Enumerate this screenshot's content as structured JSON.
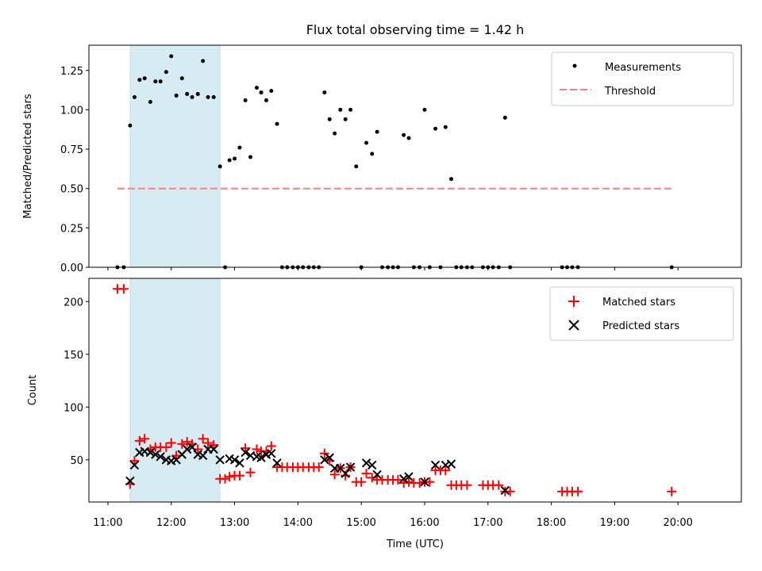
{
  "chart_data": [
    {
      "type": "scatter",
      "title": "Flux total observing time = 1.42 h",
      "xlabel": "",
      "ylabel": "Matched/Predicted stars",
      "xlim": [
        10.7,
        21.0
      ],
      "ylim": [
        0,
        1.41
      ],
      "yticks": [
        "0.00",
        "0.25",
        "0.50",
        "0.75",
        "1.00",
        "1.25"
      ],
      "xticks_hours": [
        11,
        12,
        13,
        14,
        15,
        16,
        17,
        18,
        19,
        20
      ],
      "shaded_interval": [
        11.35,
        12.77
      ],
      "grid": false,
      "legend_position": "top-right",
      "legend": [
        "Measurements",
        "Threshold"
      ],
      "threshold": {
        "name": "Threshold",
        "value": 0.5,
        "x_range": [
          11.15,
          19.9
        ],
        "color": "#ff7f7f",
        "style": "dashed"
      },
      "series": [
        {
          "name": "Measurements",
          "color": "#000000",
          "points": [
            [
              11.15,
              0
            ],
            [
              11.25,
              0
            ],
            [
              11.35,
              0.9
            ],
            [
              11.42,
              1.08
            ],
            [
              11.5,
              1.19
            ],
            [
              11.58,
              1.2
            ],
            [
              11.67,
              1.05
            ],
            [
              11.75,
              1.18
            ],
            [
              11.83,
              1.18
            ],
            [
              11.92,
              1.24
            ],
            [
              12.0,
              1.34
            ],
            [
              12.08,
              1.09
            ],
            [
              12.17,
              1.2
            ],
            [
              12.25,
              1.1
            ],
            [
              12.33,
              1.08
            ],
            [
              12.42,
              1.1
            ],
            [
              12.5,
              1.31
            ],
            [
              12.58,
              1.08
            ],
            [
              12.67,
              1.08
            ],
            [
              12.77,
              0.64
            ],
            [
              12.85,
              0
            ],
            [
              12.92,
              0.68
            ],
            [
              13.0,
              0.69
            ],
            [
              13.08,
              0.76
            ],
            [
              13.17,
              1.06
            ],
            [
              13.25,
              0.7
            ],
            [
              13.35,
              1.14
            ],
            [
              13.42,
              1.11
            ],
            [
              13.5,
              1.06
            ],
            [
              13.58,
              1.12
            ],
            [
              13.67,
              0.91
            ],
            [
              13.75,
              0
            ],
            [
              13.83,
              0
            ],
            [
              13.92,
              0
            ],
            [
              14.0,
              0
            ],
            [
              14.08,
              0
            ],
            [
              14.17,
              0
            ],
            [
              14.25,
              0
            ],
            [
              14.33,
              0
            ],
            [
              14.42,
              1.11
            ],
            [
              14.5,
              0.94
            ],
            [
              14.58,
              0.85
            ],
            [
              14.67,
              1.0
            ],
            [
              14.75,
              0.94
            ],
            [
              14.83,
              1.0
            ],
            [
              14.92,
              0.64
            ],
            [
              15.0,
              0
            ],
            [
              15.08,
              0.79
            ],
            [
              15.17,
              0.72
            ],
            [
              15.25,
              0.86
            ],
            [
              15.33,
              0
            ],
            [
              15.42,
              0
            ],
            [
              15.5,
              0
            ],
            [
              15.58,
              0
            ],
            [
              15.67,
              0.84
            ],
            [
              15.75,
              0.82
            ],
            [
              15.83,
              0
            ],
            [
              15.92,
              0
            ],
            [
              16.0,
              1.0
            ],
            [
              16.08,
              0
            ],
            [
              16.17,
              0.88
            ],
            [
              16.25,
              0
            ],
            [
              16.33,
              0.89
            ],
            [
              16.42,
              0.56
            ],
            [
              16.5,
              0
            ],
            [
              16.58,
              0
            ],
            [
              16.67,
              0
            ],
            [
              16.75,
              0
            ],
            [
              16.92,
              0
            ],
            [
              17.0,
              0
            ],
            [
              17.08,
              0
            ],
            [
              17.17,
              0
            ],
            [
              17.27,
              0.95
            ],
            [
              17.35,
              0
            ],
            [
              18.17,
              0
            ],
            [
              18.25,
              0
            ],
            [
              18.33,
              0
            ],
            [
              18.42,
              0
            ],
            [
              19.9,
              0
            ]
          ]
        }
      ]
    },
    {
      "type": "scatter",
      "title": "",
      "xlabel": "Time (UTC)",
      "ylabel": "Count",
      "xlim": [
        10.7,
        21.0
      ],
      "ylim": [
        10,
        222
      ],
      "yticks": [
        "50",
        "100",
        "150",
        "200"
      ],
      "yticks_values": [
        50,
        100,
        150,
        200
      ],
      "xtick_labels": [
        "11:00",
        "12:00",
        "13:00",
        "14:00",
        "15:00",
        "16:00",
        "17:00",
        "18:00",
        "19:00",
        "20:00"
      ],
      "xticks_hours": [
        11,
        12,
        13,
        14,
        15,
        16,
        17,
        18,
        19,
        20
      ],
      "shaded_interval": [
        11.35,
        12.77
      ],
      "grid": false,
      "legend_position": "top-right",
      "legend": [
        "Matched stars",
        "Predicted stars"
      ],
      "series": [
        {
          "name": "Matched stars",
          "marker": "plus",
          "color": "#ff0000",
          "points": [
            [
              11.15,
              212
            ],
            [
              11.25,
              212
            ],
            [
              11.35,
              27
            ],
            [
              11.42,
              49
            ],
            [
              11.5,
              68
            ],
            [
              11.58,
              70
            ],
            [
              11.67,
              60
            ],
            [
              11.75,
              62
            ],
            [
              11.83,
              62
            ],
            [
              11.92,
              62
            ],
            [
              12.0,
              66
            ],
            [
              12.08,
              54
            ],
            [
              12.17,
              65
            ],
            [
              12.25,
              67
            ],
            [
              12.33,
              65
            ],
            [
              12.42,
              60
            ],
            [
              12.5,
              70
            ],
            [
              12.58,
              66
            ],
            [
              12.67,
              64
            ],
            [
              12.77,
              32
            ],
            [
              12.85,
              32
            ],
            [
              12.92,
              34
            ],
            [
              13.0,
              35
            ],
            [
              13.08,
              35
            ],
            [
              13.17,
              61
            ],
            [
              13.25,
              38
            ],
            [
              13.35,
              60
            ],
            [
              13.42,
              58
            ],
            [
              13.5,
              58
            ],
            [
              13.58,
              63
            ],
            [
              13.67,
              43
            ],
            [
              13.75,
              43
            ],
            [
              13.83,
              43
            ],
            [
              13.92,
              43
            ],
            [
              14.0,
              43
            ],
            [
              14.08,
              43
            ],
            [
              14.17,
              43
            ],
            [
              14.25,
              43
            ],
            [
              14.33,
              43
            ],
            [
              14.42,
              56
            ],
            [
              14.5,
              49
            ],
            [
              14.58,
              36
            ],
            [
              14.67,
              42
            ],
            [
              14.75,
              35
            ],
            [
              14.83,
              43
            ],
            [
              14.92,
              29
            ],
            [
              15.0,
              29
            ],
            [
              15.08,
              37
            ],
            [
              15.17,
              33
            ],
            [
              15.25,
              31
            ],
            [
              15.33,
              31
            ],
            [
              15.42,
              31
            ],
            [
              15.5,
              31
            ],
            [
              15.58,
              31
            ],
            [
              15.67,
              28
            ],
            [
              15.75,
              29
            ],
            [
              15.83,
              28
            ],
            [
              15.92,
              28
            ],
            [
              16.0,
              29
            ],
            [
              16.08,
              29
            ],
            [
              16.17,
              40
            ],
            [
              16.25,
              40
            ],
            [
              16.33,
              40
            ],
            [
              16.42,
              26
            ],
            [
              16.5,
              26
            ],
            [
              16.58,
              26
            ],
            [
              16.67,
              26
            ],
            [
              16.92,
              26
            ],
            [
              17.0,
              26
            ],
            [
              17.08,
              26
            ],
            [
              17.17,
              26
            ],
            [
              17.27,
              20
            ],
            [
              17.35,
              20
            ],
            [
              18.17,
              20
            ],
            [
              18.25,
              20
            ],
            [
              18.33,
              20
            ],
            [
              18.42,
              20
            ],
            [
              19.9,
              20
            ]
          ]
        },
        {
          "name": "Predicted stars",
          "marker": "x",
          "color": "#000000",
          "points": [
            [
              11.35,
              30
            ],
            [
              11.42,
              45
            ],
            [
              11.5,
              57
            ],
            [
              11.58,
              58
            ],
            [
              11.67,
              57
            ],
            [
              11.75,
              55
            ],
            [
              11.83,
              53
            ],
            [
              11.92,
              50
            ],
            [
              12.0,
              49
            ],
            [
              12.08,
              50
            ],
            [
              12.17,
              55
            ],
            [
              12.25,
              60
            ],
            [
              12.33,
              62
            ],
            [
              12.42,
              55
            ],
            [
              12.5,
              54
            ],
            [
              12.58,
              60
            ],
            [
              12.67,
              60
            ],
            [
              12.77,
              50
            ],
            [
              12.92,
              51
            ],
            [
              13.0,
              50
            ],
            [
              13.08,
              47
            ],
            [
              13.17,
              57
            ],
            [
              13.25,
              54
            ],
            [
              13.35,
              53
            ],
            [
              13.42,
              52
            ],
            [
              13.5,
              55
            ],
            [
              13.58,
              56
            ],
            [
              13.67,
              47
            ],
            [
              14.42,
              50
            ],
            [
              14.5,
              52
            ],
            [
              14.58,
              42
            ],
            [
              14.67,
              42
            ],
            [
              14.75,
              37
            ],
            [
              14.83,
              43
            ],
            [
              15.08,
              47
            ],
            [
              15.17,
              45
            ],
            [
              15.25,
              36
            ],
            [
              15.67,
              32
            ],
            [
              15.75,
              34
            ],
            [
              16.0,
              29
            ],
            [
              16.17,
              45
            ],
            [
              16.33,
              45
            ],
            [
              16.42,
              46
            ],
            [
              17.27,
              21
            ]
          ]
        }
      ]
    }
  ]
}
